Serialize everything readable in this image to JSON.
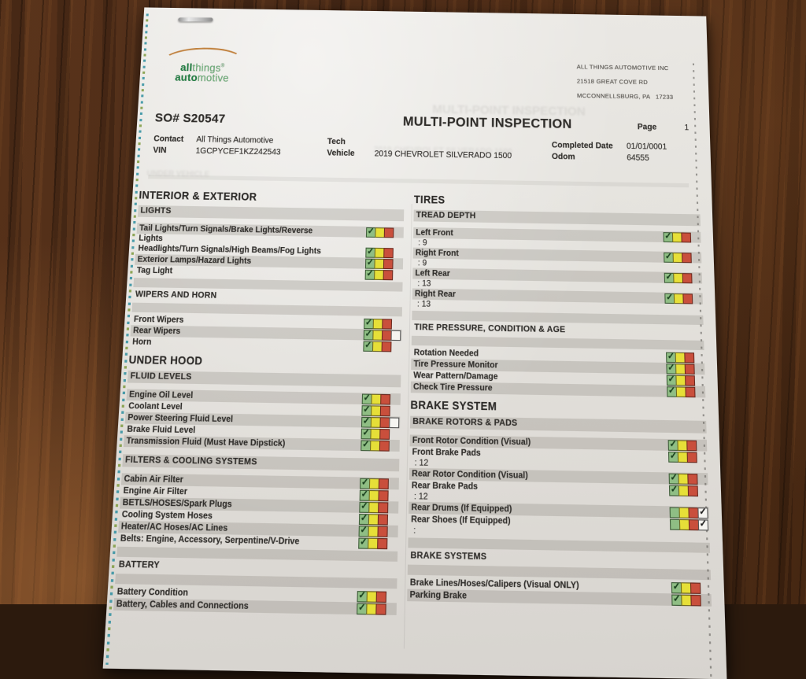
{
  "icons": {
    "check": "✓"
  },
  "colors": {
    "status_green": "#8fbe84",
    "status_yellow": "#e6df38",
    "status_red": "#c94f3c",
    "logo_green": "#1e7d40",
    "logo_arc_orange": "#c0803c"
  },
  "company": {
    "logo_word1_bold": "all",
    "logo_word1_rest": "things",
    "logo_reg_mark": "®",
    "logo_word2_bold": "auto",
    "logo_word2_rest": "motive",
    "address_lines": [
      "ALL THINGS AUTOMOTIVE INC",
      "21518 GREAT COVE RD",
      "MCCONNELLSBURG, PA   17233"
    ]
  },
  "header": {
    "so_number": "SO# S20547",
    "title": "MULTI-POINT INSPECTION",
    "page_label": "Page",
    "page_number": "1",
    "info": [
      {
        "label": "Contact",
        "value": "All Things Automotive"
      },
      {
        "label": "Tech",
        "value": ""
      },
      {
        "label": "Completed Date",
        "value": "01/01/0001"
      },
      {
        "label": "VIN",
        "value": "1GCPYCEF1KZ242543"
      },
      {
        "label": "Vehicle",
        "value": "2019 CHEVROLET SILVERADO 1500"
      },
      {
        "label": "Odom",
        "value": "64555"
      }
    ]
  },
  "ghosts": {
    "title": "MULTI-POINT INSPECTION",
    "vehicle": "2019 CHEVROLET SILVERADO 1500",
    "under_vehicle": "UNDER VEHICLE"
  },
  "columns": [
    {
      "sections": [
        {
          "heading": "INTERIOR & EXTERIOR",
          "blocks": [
            {
              "type": "sub",
              "label": "LIGHTS",
              "striped": true
            },
            {
              "type": "gap"
            },
            {
              "type": "item",
              "label": "Tail Lights/Turn Signals/Brake Lights/Reverse",
              "label2": "Lights",
              "striped": true
            },
            {
              "type": "item",
              "label": "Headlights/Turn Signals/High Beams/Fog Lights",
              "striped": false
            },
            {
              "type": "item",
              "label": "Exterior Lamps/Hazard Lights",
              "striped": true
            },
            {
              "type": "item",
              "label": "Tag Light",
              "striped": false
            },
            {
              "type": "bar"
            },
            {
              "type": "sub",
              "label": "WIPERS AND HORN",
              "striped": false
            },
            {
              "type": "bar"
            },
            {
              "type": "item",
              "label": "Front Wipers",
              "striped": false
            },
            {
              "type": "item",
              "label": "Rear Wipers",
              "striped": true,
              "extra_box": "empty"
            },
            {
              "type": "item",
              "label": "Horn",
              "striped": false
            }
          ]
        },
        {
          "heading": "UNDER HOOD",
          "blocks": [
            {
              "type": "sub",
              "label": "FLUID LEVELS",
              "striped": true
            },
            {
              "type": "gap"
            },
            {
              "type": "item",
              "label": "Engine Oil Level",
              "striped": true
            },
            {
              "type": "item",
              "label": "Coolant Level",
              "striped": false
            },
            {
              "type": "item",
              "label": "Power Steering Fluid Level",
              "striped": true,
              "extra_box": "empty"
            },
            {
              "type": "item",
              "label": "Brake Fluid Level",
              "striped": false
            },
            {
              "type": "item",
              "label": "Transmission Fluid (Must Have Dipstick)",
              "striped": true
            },
            {
              "type": "gap"
            },
            {
              "type": "sub",
              "label": "FILTERS & COOLING SYSTEMS",
              "striped": true
            },
            {
              "type": "gap"
            },
            {
              "type": "item",
              "label": "Cabin Air Filter",
              "striped": true
            },
            {
              "type": "item",
              "label": "Engine Air Filter",
              "striped": false
            },
            {
              "type": "item",
              "label": "BETLS/HOSES/Spark Plugs",
              "striped": true
            },
            {
              "type": "item",
              "label": "Cooling System Hoses",
              "striped": false
            },
            {
              "type": "item",
              "label": "Heater/AC Hoses/AC Lines",
              "striped": true
            },
            {
              "type": "item",
              "label": "Belts: Engine, Accessory, Serpentine/V-Drive",
              "striped": false
            },
            {
              "type": "bar"
            },
            {
              "type": "sub",
              "label": "BATTERY",
              "striped": false
            },
            {
              "type": "bar"
            },
            {
              "type": "item",
              "label": "Battery Condition",
              "striped": false
            },
            {
              "type": "item",
              "label": "Battery, Cables and Connections",
              "striped": true
            }
          ]
        }
      ]
    },
    {
      "sections": [
        {
          "heading": "TIRES",
          "blocks": [
            {
              "type": "sub",
              "label": "TREAD DEPTH",
              "striped": true
            },
            {
              "type": "gap"
            },
            {
              "type": "item",
              "label": "Left Front",
              "striped": true,
              "value": ": 9"
            },
            {
              "type": "item",
              "label": "Right Front",
              "striped": true,
              "value": ": 9"
            },
            {
              "type": "item",
              "label": "Left Rear",
              "striped": true,
              "value": ": 13"
            },
            {
              "type": "item",
              "label": "Right Rear",
              "striped": true,
              "value": ": 13"
            },
            {
              "type": "bar"
            },
            {
              "type": "sub",
              "label": "TIRE PRESSURE, CONDITION & AGE",
              "striped": false
            },
            {
              "type": "bar"
            },
            {
              "type": "item",
              "label": "Rotation Needed",
              "striped": false
            },
            {
              "type": "item",
              "label": "Tire Pressure Monitor",
              "striped": true
            },
            {
              "type": "item",
              "label": "Wear Pattern/Damage",
              "striped": false
            },
            {
              "type": "item",
              "label": "Check Tire Pressure",
              "striped": true
            }
          ]
        },
        {
          "heading": "BRAKE SYSTEM",
          "blocks": [
            {
              "type": "sub",
              "label": "BRAKE ROTORS & PADS",
              "striped": true
            },
            {
              "type": "gap"
            },
            {
              "type": "item",
              "label": "Front Rotor Condition (Visual)",
              "striped": true
            },
            {
              "type": "item",
              "label": "Front Brake Pads",
              "striped": false,
              "value": ": 12"
            },
            {
              "type": "item",
              "label": "Rear Rotor Condition (Visual)",
              "striped": true
            },
            {
              "type": "item",
              "label": "Rear Brake Pads",
              "striped": false,
              "value": ": 12"
            },
            {
              "type": "item",
              "label": "Rear Drums (If Equipped)",
              "striped": true,
              "green_checked": false,
              "extra_box": "checked"
            },
            {
              "type": "item",
              "label": "Rear Shoes (If Equipped)",
              "striped": false,
              "green_checked": false,
              "extra_box": "checked",
              "value": ":"
            },
            {
              "type": "bar"
            },
            {
              "type": "sub",
              "label": "BRAKE SYSTEMS",
              "striped": false
            },
            {
              "type": "bar"
            },
            {
              "type": "item",
              "label": "Brake Lines/Hoses/Calipers (Visual ONLY)",
              "striped": false
            },
            {
              "type": "item",
              "label": "Parking Brake",
              "striped": true
            }
          ]
        }
      ]
    }
  ]
}
